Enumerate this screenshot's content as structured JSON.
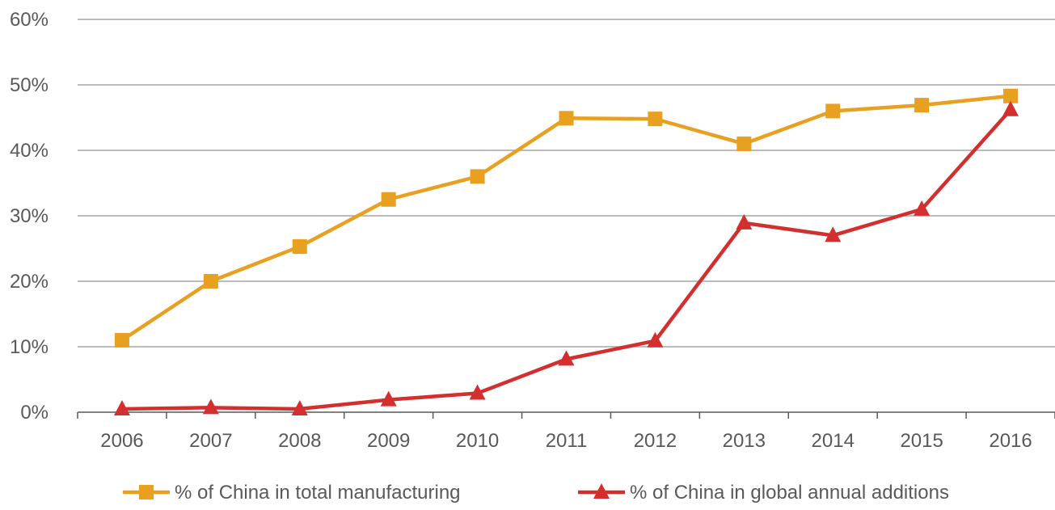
{
  "chart_data": {
    "type": "line",
    "title": "",
    "xlabel": "",
    "ylabel": "",
    "categories": [
      "2006",
      "2007",
      "2008",
      "2009",
      "2010",
      "2011",
      "2012",
      "2013",
      "2014",
      "2015",
      "2016"
    ],
    "ylim": [
      0,
      60
    ],
    "yticks": [
      "0%",
      "10%",
      "20%",
      "30%",
      "40%",
      "50%",
      "60%"
    ],
    "grid": true,
    "legend_position": "bottom",
    "series": [
      {
        "name": "% of China in total manufacturing",
        "color": "#E8A020",
        "marker": "square",
        "values": [
          11,
          20,
          25.3,
          32.5,
          36,
          44.9,
          44.8,
          41,
          46,
          46.9,
          48.3
        ]
      },
      {
        "name": "% of China in global annual additions",
        "color": "#D32F2F",
        "marker": "triangle",
        "values": [
          0.5,
          0.7,
          0.5,
          1.9,
          2.9,
          8.1,
          10.9,
          28.9,
          27,
          31,
          46.2
        ]
      }
    ]
  }
}
